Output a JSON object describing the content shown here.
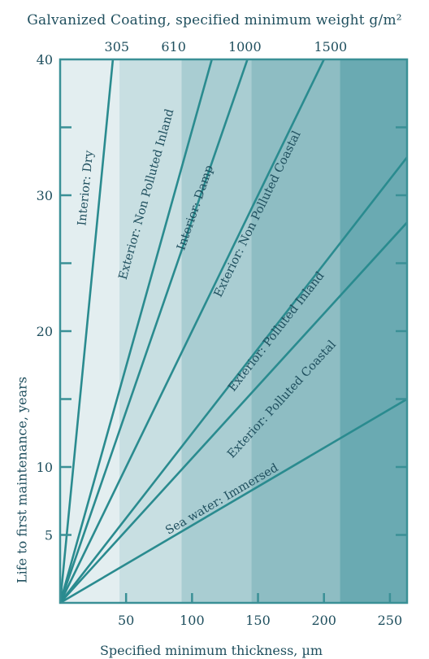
{
  "chart_data": {
    "type": "line",
    "title": "Galvanized Coating, specified minimum weight g/m²",
    "xlabel": "Specified minimum thickness, µm",
    "ylabel": "Life to first maintenance, years",
    "xlim": [
      0,
      263
    ],
    "ylim": [
      0,
      40
    ],
    "x_ticks": [
      50,
      100,
      150,
      200,
      250
    ],
    "y_ticks": [
      5,
      10,
      20,
      30,
      40
    ],
    "top_axis": {
      "label": "Galvanized Coating, specified minimum weight g/m²",
      "ticks": [
        {
          "label": "305",
          "x": 43
        },
        {
          "label": "610",
          "x": 86
        },
        {
          "label": "1000",
          "x": 140
        },
        {
          "label": "1500",
          "x": 205
        }
      ]
    },
    "bands": [
      {
        "x0": 0,
        "x1": 45,
        "color": "#e3eef0"
      },
      {
        "x0": 45,
        "x1": 92,
        "color": "#c8dfe2"
      },
      {
        "x0": 92,
        "x1": 145,
        "color": "#a9cdd2"
      },
      {
        "x0": 145,
        "x1": 212,
        "color": "#8ebdc3"
      },
      {
        "x0": 212,
        "x1": 263,
        "color": "#6aaab2"
      }
    ],
    "series": [
      {
        "name": "Interior: Dry",
        "x": [
          0,
          40
        ],
        "y": [
          0,
          40
        ]
      },
      {
        "name": "Exterior: Non Polluted Inland",
        "x": [
          0,
          115
        ],
        "y": [
          0,
          40
        ]
      },
      {
        "name": "Interior: Damp",
        "x": [
          0,
          142
        ],
        "y": [
          0,
          40
        ]
      },
      {
        "name": "Exterior: Non Polluted Coastal",
        "x": [
          0,
          200
        ],
        "y": [
          0,
          40
        ]
      },
      {
        "name": "Exterior: Polluted Inland",
        "x": [
          0,
          263
        ],
        "y": [
          0,
          32.8
        ]
      },
      {
        "name": "Exterior: Polluted Coastal",
        "x": [
          0,
          263
        ],
        "y": [
          0,
          28
        ]
      },
      {
        "name": "Sea water: Immersed",
        "x": [
          0,
          263
        ],
        "y": [
          0,
          15
        ]
      }
    ],
    "line_labels": [
      {
        "text": "Interior: Dry",
        "x": 22,
        "y": 30.5
      },
      {
        "text": "Exterior: Non Polluted Inland",
        "x": 68,
        "y": 30
      },
      {
        "text": "Interior: Damp",
        "x": 105,
        "y": 29
      },
      {
        "text": "Exterior: Non Polluted Coastal",
        "x": 152,
        "y": 28.5
      },
      {
        "text": "Exterior: Polluted Inland",
        "x": 166,
        "y": 19.8
      },
      {
        "text": "Exterior: Polluted Coastal",
        "x": 170,
        "y": 14.8
      },
      {
        "text": "Sea water: Immersed",
        "x": 124,
        "y": 7.4
      }
    ],
    "colors": {
      "line": "#2a8b8f",
      "axis": "#3a9096",
      "text": "#1f4f5e"
    },
    "grid": false
  }
}
